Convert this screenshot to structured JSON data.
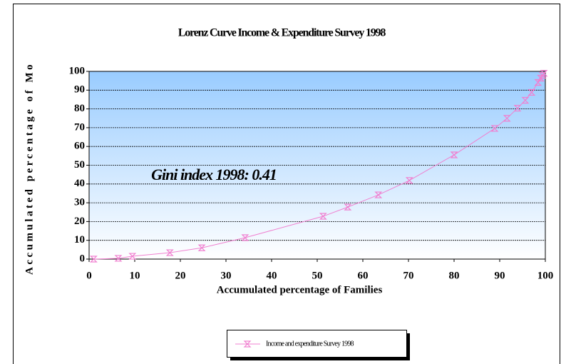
{
  "chart_data": {
    "type": "line",
    "title": "Lorenz Curve Income & Expenditure Survey 1998",
    "x_label": "Accumulated percentage of Families",
    "y_label": "Accumulated percentage of Mo",
    "annotation": "Gini index 1998: 0.41",
    "series": [
      {
        "name": "Income and expenditure Survey 1998",
        "color": "#f080d0",
        "x": [
          1,
          6.4,
          9.5,
          17.7,
          24.7,
          34.2,
          51.3,
          56.7,
          63.4,
          70.2,
          80,
          88.9,
          91.6,
          93.9,
          95.6,
          97,
          98.4,
          99,
          99.4,
          99.7
        ],
        "values": [
          0,
          0.4,
          1.5,
          3.4,
          6,
          11.4,
          22.8,
          27.7,
          34.2,
          41.9,
          55.5,
          69.6,
          75,
          80.4,
          84.6,
          88.8,
          94.1,
          96.4,
          97.9,
          99
        ]
      }
    ],
    "xlim": [
      0,
      100
    ],
    "xticks": [
      0,
      10,
      20,
      30,
      40,
      50,
      60,
      70,
      80,
      90,
      100
    ],
    "ylim": [
      0,
      100
    ],
    "yticks": [
      0,
      10,
      20,
      30,
      40,
      50,
      60,
      70,
      80,
      90,
      100
    ],
    "grid": true
  }
}
